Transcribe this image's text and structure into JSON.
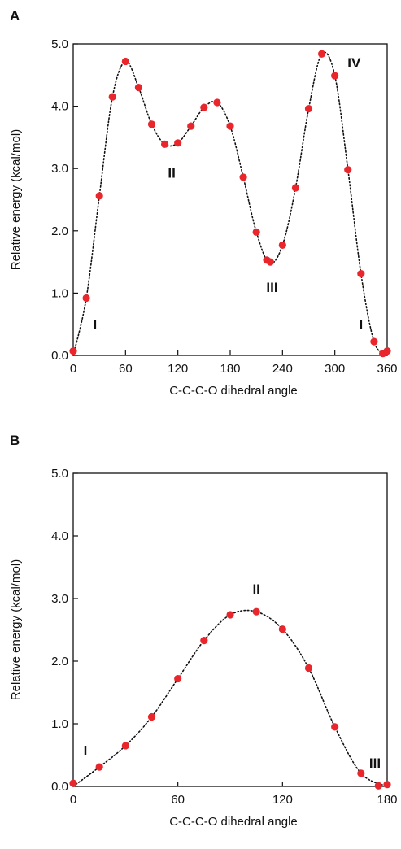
{
  "chart_data": [
    {
      "type": "scatter",
      "panel_label": "A",
      "xlabel": "C-C-C-O dihedral angle",
      "ylabel": "Relative energy (kcal/mol)",
      "xlim": [
        0,
        360
      ],
      "ylim": [
        0,
        5
      ],
      "xticks": [
        0,
        60,
        120,
        180,
        240,
        300,
        360
      ],
      "yticks": [
        "0.0",
        "1.0",
        "2.0",
        "3.0",
        "4.0",
        "5.0"
      ],
      "grid": false,
      "legend": "none",
      "marker_color": "#e8262b",
      "line_style": "dotted black fit line",
      "points": [
        [
          0,
          0.07
        ],
        [
          15,
          0.92
        ],
        [
          30,
          2.56
        ],
        [
          45,
          4.15
        ],
        [
          60,
          4.72
        ],
        [
          75,
          4.3
        ],
        [
          90,
          3.71
        ],
        [
          105,
          3.39
        ],
        [
          120,
          3.41
        ],
        [
          135,
          3.68
        ],
        [
          150,
          3.98
        ],
        [
          165,
          4.06
        ],
        [
          180,
          3.68
        ],
        [
          195,
          2.86
        ],
        [
          210,
          1.98
        ],
        [
          222,
          1.53
        ],
        [
          226,
          1.5
        ],
        [
          240,
          1.77
        ],
        [
          255,
          2.69
        ],
        [
          270,
          3.96
        ],
        [
          285,
          4.84
        ],
        [
          300,
          4.49
        ],
        [
          315,
          2.98
        ],
        [
          330,
          1.31
        ],
        [
          345,
          0.22
        ],
        [
          355,
          0.03
        ],
        [
          360,
          0.07
        ]
      ],
      "curve": [
        [
          0,
          0.0
        ],
        [
          15,
          0.92
        ],
        [
          30,
          2.56
        ],
        [
          45,
          4.15
        ],
        [
          60,
          4.72
        ],
        [
          75,
          4.3
        ],
        [
          90,
          3.71
        ],
        [
          105,
          3.39
        ],
        [
          120,
          3.41
        ],
        [
          135,
          3.68
        ],
        [
          150,
          3.98
        ],
        [
          165,
          4.06
        ],
        [
          180,
          3.68
        ],
        [
          195,
          2.86
        ],
        [
          210,
          1.98
        ],
        [
          225,
          1.48
        ],
        [
          240,
          1.77
        ],
        [
          255,
          2.69
        ],
        [
          270,
          3.96
        ],
        [
          285,
          4.84
        ],
        [
          300,
          4.49
        ],
        [
          315,
          2.98
        ],
        [
          330,
          1.31
        ],
        [
          345,
          0.22
        ],
        [
          360,
          0.0
        ]
      ],
      "annotations": [
        {
          "text": "I",
          "x": 25,
          "y": 0.42
        },
        {
          "text": "II",
          "x": 113,
          "y": 2.85
        },
        {
          "text": "III",
          "x": 228,
          "y": 1.02
        },
        {
          "text": "IV",
          "x": 322,
          "y": 4.62
        },
        {
          "text": "I",
          "x": 330,
          "y": 0.42
        }
      ]
    },
    {
      "type": "scatter",
      "panel_label": "B",
      "xlabel": "C-C-C-O dihedral angle",
      "ylabel": "Relative energy (kcal/mol)",
      "xlim": [
        0,
        180
      ],
      "ylim": [
        0,
        5
      ],
      "xticks": [
        0,
        60,
        120,
        180
      ],
      "yticks": [
        "0.0",
        "1.0",
        "2.0",
        "3.0",
        "4.0",
        "5.0"
      ],
      "grid": false,
      "legend": "none",
      "marker_color": "#e8262b",
      "line_style": "dotted black fit line",
      "points": [
        [
          0,
          0.05
        ],
        [
          15,
          0.31
        ],
        [
          30,
          0.65
        ],
        [
          45,
          1.11
        ],
        [
          60,
          1.72
        ],
        [
          75,
          2.33
        ],
        [
          90,
          2.74
        ],
        [
          105,
          2.79
        ],
        [
          120,
          2.51
        ],
        [
          135,
          1.89
        ],
        [
          150,
          0.95
        ],
        [
          165,
          0.21
        ],
        [
          175,
          0.01
        ],
        [
          180,
          0.03
        ]
      ],
      "curve": [
        [
          0,
          0.0
        ],
        [
          15,
          0.31
        ],
        [
          30,
          0.65
        ],
        [
          45,
          1.11
        ],
        [
          60,
          1.72
        ],
        [
          75,
          2.33
        ],
        [
          90,
          2.74
        ],
        [
          105,
          2.79
        ],
        [
          120,
          2.51
        ],
        [
          135,
          1.89
        ],
        [
          150,
          0.95
        ],
        [
          165,
          0.21
        ],
        [
          180,
          0.0
        ]
      ],
      "annotations": [
        {
          "text": "I",
          "x": 7,
          "y": 0.5
        },
        {
          "text": "II",
          "x": 105,
          "y": 3.08
        },
        {
          "text": "III",
          "x": 173,
          "y": 0.3
        }
      ]
    }
  ]
}
